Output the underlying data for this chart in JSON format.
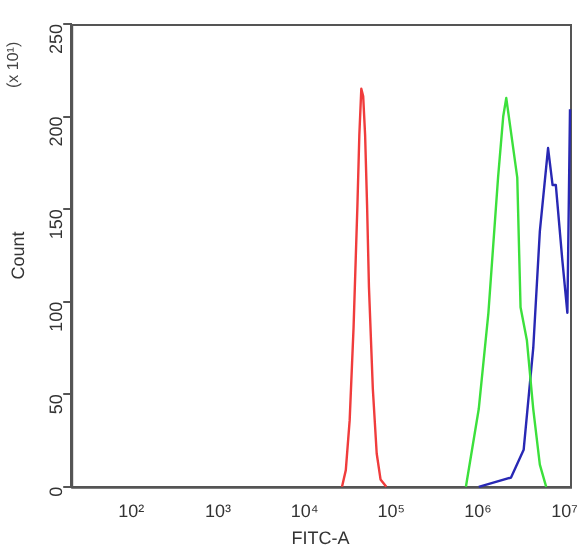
{
  "chart_data": {
    "type": "line",
    "xlabel": "FITC-A",
    "ylabel": "Count",
    "annotations": [
      "(x 10¹)"
    ],
    "log": "x",
    "xlim": [
      22,
      12500000
    ],
    "ylim": [
      0,
      250
    ],
    "xticks": [
      {
        "value": 100,
        "label": "10²"
      },
      {
        "value": 1000,
        "label": "10³"
      },
      {
        "value": 10000,
        "label": "10⁴"
      },
      {
        "value": 100000,
        "label": "10⁵"
      },
      {
        "value": 1000000,
        "label": "10⁶"
      },
      {
        "value": 10000000,
        "label": "10⁷"
      }
    ],
    "yticks": [
      0,
      50,
      100,
      150,
      200,
      250
    ],
    "grid": false,
    "legend": false,
    "marker": "none",
    "line_style": "solid",
    "series": [
      {
        "color": "#f03c3c",
        "x": [
          29300,
          32400,
          35900,
          39800,
          44100,
          46400,
          48900,
          51400,
          54100,
          57000,
          59900,
          66400,
          73600,
          81500,
          95000
        ],
        "values": [
          0,
          9,
          36,
          86,
          152,
          190,
          215,
          211,
          190,
          152,
          108,
          53,
          18,
          4,
          0
        ]
      },
      {
        "color": "#3ce03c",
        "x": [
          787000,
          1107000,
          1431000,
          1849000,
          2120000,
          2300000,
          3080000,
          3360000,
          3980000,
          4710000,
          5610000,
          6640000
        ],
        "values": [
          0,
          42,
          94,
          167,
          200,
          210,
          167,
          97,
          79,
          42,
          12,
          0
        ]
      },
      {
        "color": "#2828b4",
        "x": [
          1107000,
          2610000,
          3650000,
          4710000,
          5610000,
          6980000,
          7870000,
          8580000,
          10170000,
          11660000,
          12500000
        ],
        "values": [
          0,
          5,
          20,
          75,
          138,
          183,
          163,
          163,
          123,
          94,
          204
        ]
      }
    ]
  }
}
